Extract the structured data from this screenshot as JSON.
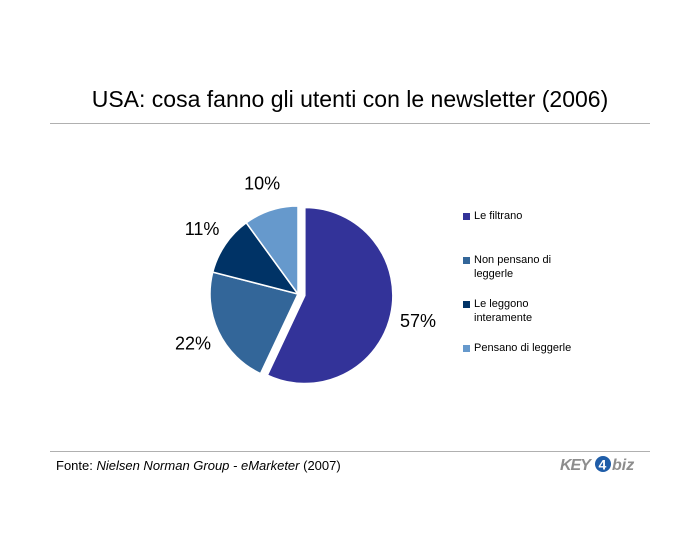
{
  "title": "USA: cosa fanno gli utenti con le newsletter (2006)",
  "source": {
    "prefix": "Fonte: ",
    "italic": "Nielsen Norman Group - eMarketer",
    "suffix": " (2007)"
  },
  "logo": {
    "text_key": "KEY",
    "text_four": "4",
    "text_biz": "biz"
  },
  "colors": {
    "rule": "#b0b0b0",
    "logo_gray": "#8d8d8d",
    "logo_blue": "#1f5da8"
  },
  "chart_data": {
    "type": "pie",
    "title": "USA: cosa fanno gli utenti con le newsletter (2006)",
    "categories": [
      "Le filtrano",
      "Non pensano di leggerle",
      "Le leggono interamente",
      "Pensano di leggerle"
    ],
    "values": [
      57,
      22,
      11,
      10
    ],
    "labels": [
      "57%",
      "22%",
      "11%",
      "10%"
    ],
    "colors": [
      "#333399",
      "#336699",
      "#003366",
      "#6699cc"
    ],
    "exploded": "Le filtrano",
    "legend": "right"
  }
}
